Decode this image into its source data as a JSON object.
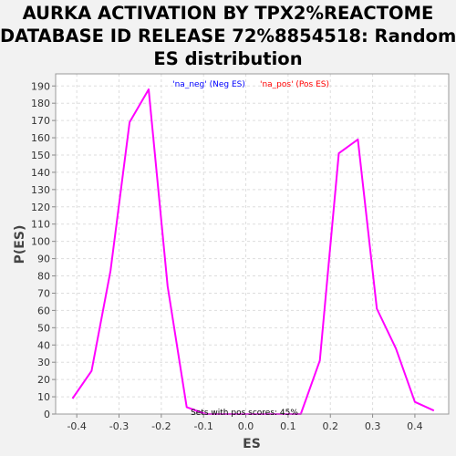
{
  "chart_data": {
    "type": "line",
    "title_lines": [
      "AURKA ACTIVATION BY TPX2%REACTOME",
      "DATABASE ID RELEASE 72%8854518: Random",
      "ES distribution"
    ],
    "xlabel": "ES",
    "ylabel": "P(ES)",
    "xlim": [
      -0.45,
      0.48
    ],
    "ylim": [
      0,
      197
    ],
    "xticks": [
      -0.4,
      -0.3,
      -0.2,
      -0.1,
      0.0,
      0.1,
      0.2,
      0.3,
      0.4
    ],
    "xtick_labels": [
      "-0.4",
      "-0.3",
      "-0.2",
      "-0.1",
      "0.0",
      "0.1",
      "0.2",
      "0.3",
      "0.4"
    ],
    "yticks": [
      0,
      10,
      20,
      30,
      40,
      50,
      60,
      70,
      80,
      90,
      100,
      110,
      120,
      130,
      140,
      150,
      160,
      170,
      180,
      190
    ],
    "grid": true,
    "legend": {
      "placement": "top-center",
      "entries": [
        {
          "label": "'na_neg' (Neg ES)",
          "color": "#0000ff"
        },
        {
          "label": "'na_pos' (Pos ES)",
          "color": "#ff0000"
        }
      ]
    },
    "annotation": "Sets with pos scores: 45%",
    "series": [
      {
        "color": "#ff00ff",
        "x": [
          -0.41,
          -0.365,
          -0.32,
          -0.275,
          -0.23,
          -0.185,
          -0.14,
          -0.095,
          -0.05,
          0.0,
          0.04,
          0.085,
          0.13,
          0.175,
          0.22,
          0.265,
          0.31,
          0.355,
          0.4,
          0.445
        ],
        "y": [
          9,
          25,
          83,
          169,
          188,
          74,
          4,
          0,
          0,
          0,
          0,
          0,
          0,
          31,
          151,
          159,
          61,
          38,
          7,
          2
        ]
      }
    ]
  }
}
